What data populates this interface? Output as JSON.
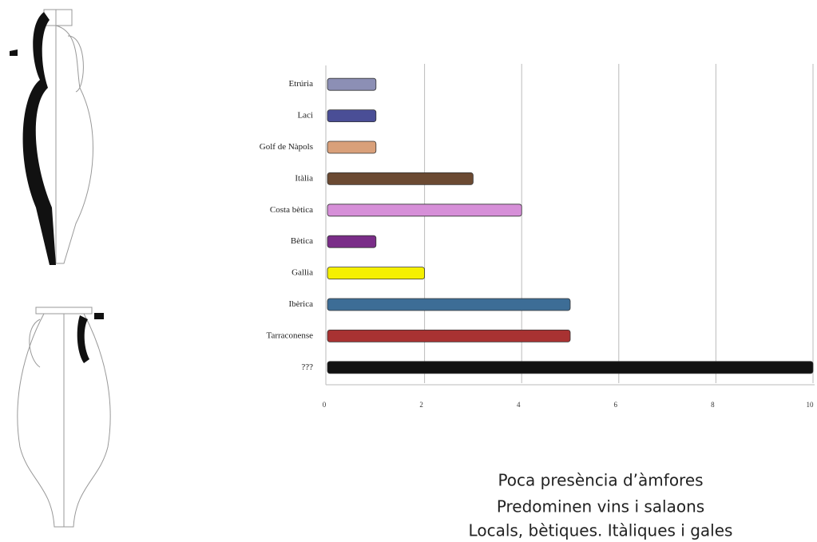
{
  "chart_data": {
    "type": "barh",
    "categories": [
      "Etrúria",
      "Laci",
      "Golf de Nàpols",
      "Itàlia",
      "Costa bètica",
      "Bètica",
      "Gallia",
      "Ibèrica",
      "Tarraconense",
      "???"
    ],
    "values": [
      1,
      1,
      1,
      3,
      4,
      1,
      2,
      5,
      5,
      10
    ],
    "colors": [
      "#8c8fb5",
      "#4a4e96",
      "#d9a07a",
      "#6b4a32",
      "#d68fd8",
      "#7a2d88",
      "#f5f000",
      "#3d6d96",
      "#a83232",
      "#111111"
    ],
    "xlim": [
      0,
      10
    ],
    "xticks": [
      0,
      2,
      4,
      6,
      8,
      10
    ],
    "grid": true,
    "annotations": [
      "Poca presència d’àmfores",
      "Predominen vins i salaons",
      "Locals, bètiques. Itàliques i gales"
    ]
  }
}
